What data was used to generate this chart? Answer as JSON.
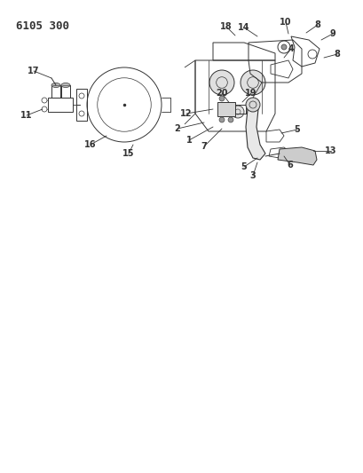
{
  "title": "6105 300",
  "bg_color": "#ffffff",
  "lc": "#333333",
  "title_fontsize": 9,
  "label_fontsize": 7,
  "figsize": [
    4.1,
    5.33
  ],
  "dpi": 100
}
